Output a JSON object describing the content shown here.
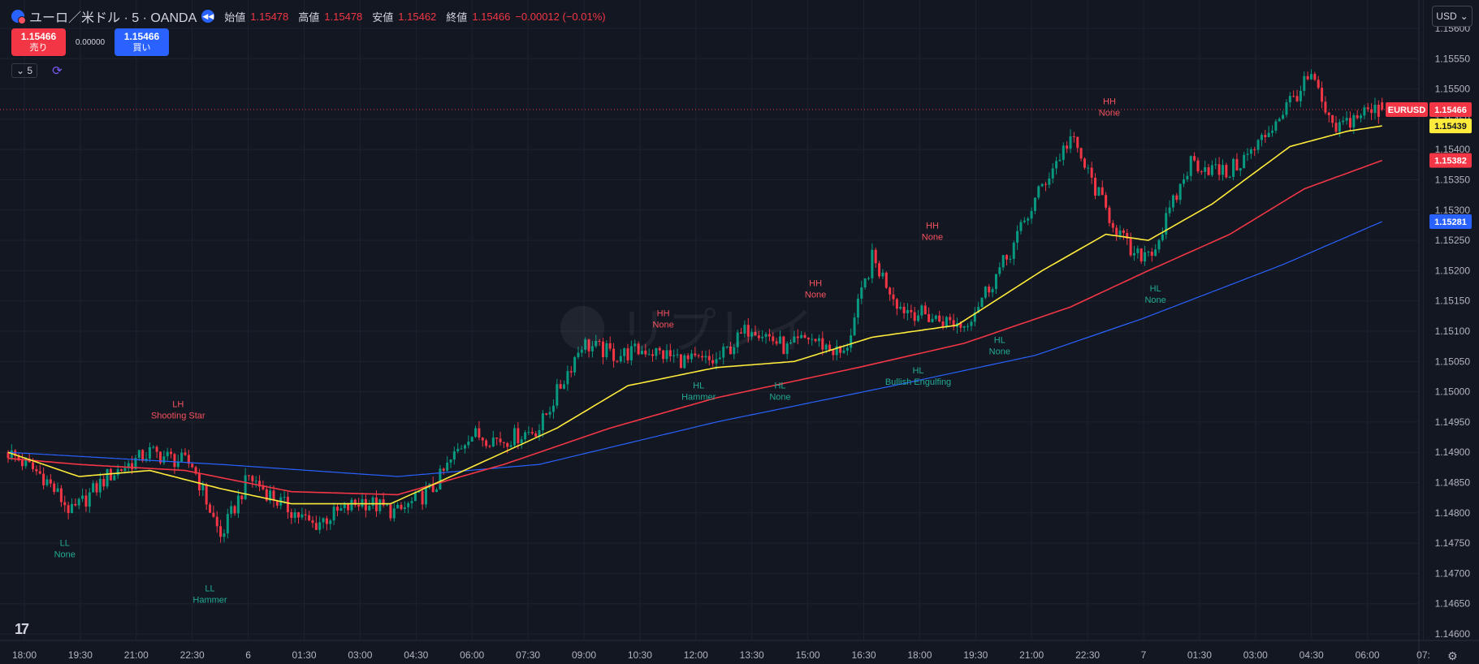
{
  "header": {
    "symbol_title": "ユーロ／米ドル · 5 · OANDA",
    "ohlc": [
      {
        "label": "始値",
        "value": "1.15478"
      },
      {
        "label": "高値",
        "value": "1.15478"
      },
      {
        "label": "安値",
        "value": "1.15462"
      },
      {
        "label": "終値",
        "value": "1.15466"
      }
    ],
    "change": "−0.00012 (−0.01%)"
  },
  "trade": {
    "sell_price": "1.15466",
    "sell_label": "売り",
    "spread": "0.00000",
    "buy_price": "1.15466",
    "buy_label": "買い"
  },
  "indicator": {
    "interval": "5"
  },
  "currency": "USD",
  "watermark": "リプレイ",
  "icons": [
    "symbol-icon",
    "replay-icon",
    "chevron-down-icon",
    "sync-icon",
    "tradingview-logo",
    "settings-icon"
  ],
  "colors": {
    "background": "#131722",
    "up": "#089981",
    "down": "#f23645",
    "ma_fast": "#ffeb3b",
    "ma_mid": "#f23645",
    "ma_slow": "#2962ff",
    "label_high": "#f7525f",
    "label_low": "#22ab94"
  },
  "chart_data": {
    "type": "candlestick",
    "symbol": "EURUSD",
    "ylim": [
      1.146,
      1.156
    ],
    "y_ticks": [
      "1.15600",
      "1.15550",
      "1.15500",
      "1.15450",
      "1.15400",
      "1.15350",
      "1.15300",
      "1.15250",
      "1.15200",
      "1.15150",
      "1.15100",
      "1.15050",
      "1.15000",
      "1.14950",
      "1.14900",
      "1.14850",
      "1.14800",
      "1.14750",
      "1.14700",
      "1.14650",
      "1.14600"
    ],
    "x_ticks": [
      "18:00",
      "19:30",
      "21:00",
      "22:30",
      "6",
      "01:30",
      "03:00",
      "04:30",
      "06:00",
      "07:30",
      "09:00",
      "10:30",
      "12:00",
      "13:30",
      "15:00",
      "16:30",
      "18:00",
      "19:30",
      "21:00",
      "22:30",
      "7",
      "01:30",
      "03:00",
      "04:30",
      "06:00",
      "07:"
    ],
    "grid": true,
    "price_tags": [
      {
        "name": "EURUSD",
        "value": 1.15466,
        "label": "1.15466",
        "color": "#f23645"
      },
      {
        "value": 1.15439,
        "label": "1.15439",
        "color": "#ffeb3b"
      },
      {
        "value": 1.15382,
        "label": "1.15382",
        "color": "#f23645"
      },
      {
        "value": 1.15281,
        "label": "1.15281",
        "color": "#2962ff"
      }
    ],
    "close_anchors": [
      [
        0,
        1.149
      ],
      [
        10,
        1.1486
      ],
      [
        18,
        1.148
      ],
      [
        28,
        1.1486
      ],
      [
        40,
        1.149
      ],
      [
        52,
        1.1488
      ],
      [
        60,
        1.1476
      ],
      [
        68,
        1.1486
      ],
      [
        76,
        1.1482
      ],
      [
        86,
        1.1478
      ],
      [
        100,
        1.1482
      ],
      [
        110,
        1.148
      ],
      [
        120,
        1.1484
      ],
      [
        130,
        1.1493
      ],
      [
        140,
        1.1492
      ],
      [
        150,
        1.1494
      ],
      [
        162,
        1.1508
      ],
      [
        172,
        1.1506
      ],
      [
        180,
        1.1507
      ],
      [
        192,
        1.1505
      ],
      [
        200,
        1.1505
      ],
      [
        210,
        1.1511
      ],
      [
        220,
        1.1507
      ],
      [
        226,
        1.1509
      ],
      [
        236,
        1.1506
      ],
      [
        244,
        1.1522
      ],
      [
        252,
        1.1514
      ],
      [
        262,
        1.1512
      ],
      [
        270,
        1.1511
      ],
      [
        282,
        1.1522
      ],
      [
        292,
        1.1534
      ],
      [
        300,
        1.1542
      ],
      [
        310,
        1.153
      ],
      [
        318,
        1.1522
      ],
      [
        324,
        1.1524
      ],
      [
        334,
        1.1538
      ],
      [
        344,
        1.1536
      ],
      [
        352,
        1.154
      ],
      [
        362,
        1.1548
      ],
      [
        368,
        1.1552
      ],
      [
        374,
        1.1543
      ],
      [
        382,
        1.1546
      ],
      [
        388,
        1.15466
      ]
    ],
    "ma_fast_anchors": [
      [
        0,
        1.149
      ],
      [
        20,
        1.1486
      ],
      [
        40,
        1.1487
      ],
      [
        60,
        1.1484
      ],
      [
        80,
        1.14815
      ],
      [
        108,
        1.14815
      ],
      [
        125,
        1.1486
      ],
      [
        140,
        1.149
      ],
      [
        155,
        1.1494
      ],
      [
        175,
        1.1501
      ],
      [
        200,
        1.1504
      ],
      [
        222,
        1.1505
      ],
      [
        244,
        1.1509
      ],
      [
        268,
        1.1511
      ],
      [
        292,
        1.152
      ],
      [
        310,
        1.1526
      ],
      [
        322,
        1.1525
      ],
      [
        340,
        1.1531
      ],
      [
        362,
        1.15405
      ],
      [
        378,
        1.1543
      ],
      [
        388,
        1.15439
      ]
    ],
    "ma_mid_anchors": [
      [
        0,
        1.1489
      ],
      [
        20,
        1.1488
      ],
      [
        50,
        1.1487
      ],
      [
        80,
        1.14835
      ],
      [
        110,
        1.1483
      ],
      [
        140,
        1.1488
      ],
      [
        170,
        1.1494
      ],
      [
        200,
        1.1499
      ],
      [
        240,
        1.1504
      ],
      [
        270,
        1.1508
      ],
      [
        300,
        1.1514
      ],
      [
        322,
        1.152
      ],
      [
        345,
        1.1526
      ],
      [
        366,
        1.15335
      ],
      [
        388,
        1.15382
      ]
    ],
    "ma_slow_anchors": [
      [
        0,
        1.149
      ],
      [
        60,
        1.1488
      ],
      [
        110,
        1.1486
      ],
      [
        150,
        1.1488
      ],
      [
        200,
        1.1495
      ],
      [
        250,
        1.1501
      ],
      [
        290,
        1.1506
      ],
      [
        320,
        1.1512
      ],
      [
        360,
        1.1521
      ],
      [
        388,
        1.15281
      ]
    ],
    "pattern_labels": [
      {
        "type": "low",
        "i": 16,
        "price": 1.14775,
        "line1": "LL",
        "line2": "None"
      },
      {
        "type": "high",
        "i": 48,
        "price": 1.14945,
        "line1": "LH",
        "line2": "Shooting Star"
      },
      {
        "type": "low",
        "i": 57,
        "price": 1.147,
        "line1": "LL",
        "line2": "Hammer"
      },
      {
        "type": "high",
        "i": 185,
        "price": 1.15095,
        "line1": "HH",
        "line2": "None"
      },
      {
        "type": "low",
        "i": 195,
        "price": 1.15035,
        "line1": "HL",
        "line2": "Hammer"
      },
      {
        "type": "low",
        "i": 218,
        "price": 1.15035,
        "line1": "HL",
        "line2": "None"
      },
      {
        "type": "high",
        "i": 228,
        "price": 1.15145,
        "line1": "HH",
        "line2": "None"
      },
      {
        "type": "low",
        "i": 257,
        "price": 1.1506,
        "line1": "HL",
        "line2": "Bullish Engulfing"
      },
      {
        "type": "high",
        "i": 261,
        "price": 1.1524,
        "line1": "HH",
        "line2": "None"
      },
      {
        "type": "low",
        "i": 280,
        "price": 1.1511,
        "line1": "HL",
        "line2": "None"
      },
      {
        "type": "high",
        "i": 311,
        "price": 1.15445,
        "line1": "HH",
        "line2": "None"
      },
      {
        "type": "low",
        "i": 324,
        "price": 1.15195,
        "line1": "HL",
        "line2": "None"
      }
    ]
  }
}
